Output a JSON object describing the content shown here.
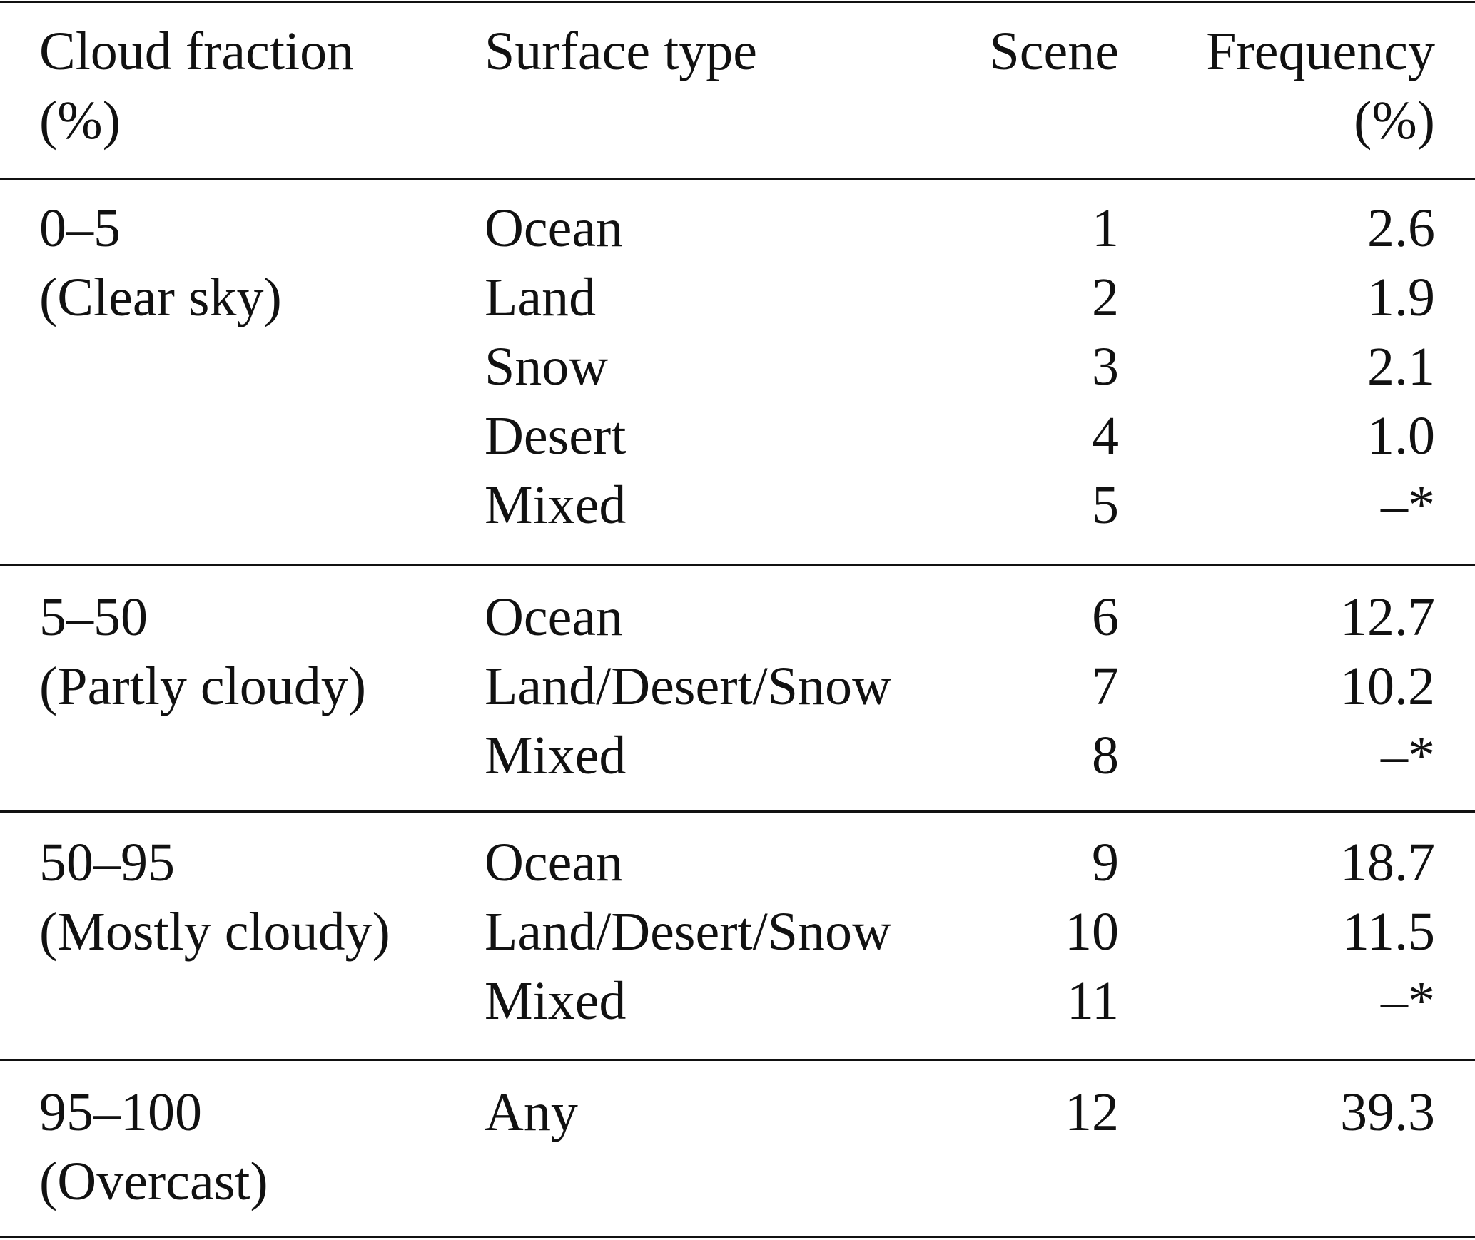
{
  "header": {
    "cloud_fraction": [
      "Cloud fraction",
      "(%)"
    ],
    "surface_type": "Surface type",
    "scene": "Scene",
    "frequency": [
      "Frequency",
      "(%)"
    ]
  },
  "groups": [
    {
      "cloud_fraction": "0–5",
      "label": "(Clear sky)",
      "rows": [
        {
          "surface": "Ocean",
          "scene": "1",
          "frequency": "2.6"
        },
        {
          "surface": "Land",
          "scene": "2",
          "frequency": "1.9"
        },
        {
          "surface": "Snow",
          "scene": "3",
          "frequency": "2.1"
        },
        {
          "surface": "Desert",
          "scene": "4",
          "frequency": "1.0"
        },
        {
          "surface": "Mixed",
          "scene": "5",
          "frequency": "–*"
        }
      ]
    },
    {
      "cloud_fraction": "5–50",
      "label": "(Partly cloudy)",
      "rows": [
        {
          "surface": "Ocean",
          "scene": "6",
          "frequency": "12.7"
        },
        {
          "surface": "Land/Desert/Snow",
          "scene": "7",
          "frequency": "10.2"
        },
        {
          "surface": "Mixed",
          "scene": "8",
          "frequency": "–*"
        }
      ]
    },
    {
      "cloud_fraction": "50–95",
      "label": "(Mostly cloudy)",
      "rows": [
        {
          "surface": "Ocean",
          "scene": "9",
          "frequency": "18.7"
        },
        {
          "surface": "Land/Desert/Snow",
          "scene": "10",
          "frequency": "11.5"
        },
        {
          "surface": "Mixed",
          "scene": "11",
          "frequency": "–*"
        }
      ]
    },
    {
      "cloud_fraction": "95–100",
      "label": "(Overcast)",
      "rows": [
        {
          "surface": "Any",
          "scene": "12",
          "frequency": "39.3"
        }
      ]
    }
  ]
}
